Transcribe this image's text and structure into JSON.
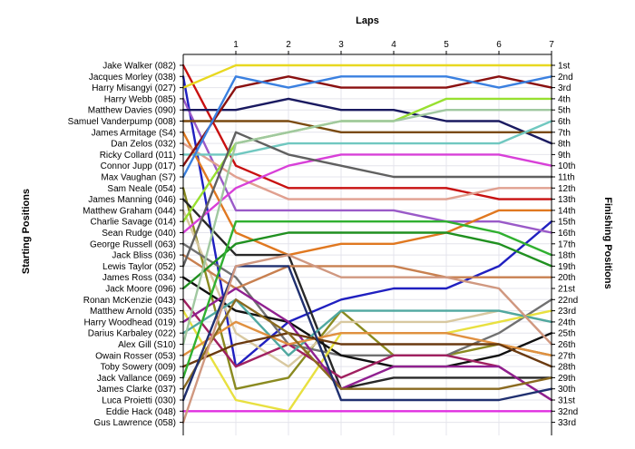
{
  "chart_data": {
    "type": "line",
    "xlabel": "Laps",
    "ylabel_left": "Starting Positions",
    "ylabel_right": "Finishing Positions",
    "x": [
      0,
      1,
      2,
      3,
      4,
      5,
      6,
      7
    ],
    "xticks": [
      "1",
      "2",
      "3",
      "4",
      "5",
      "6",
      "7"
    ],
    "yrange": [
      1,
      33
    ],
    "y_inverted": true,
    "grid": true,
    "starting_labels": [
      "Jake Walker (082)",
      "Jacques Morley (038)",
      "Harry Misangyi (027)",
      "Harry Webb (085)",
      "Matthew Davies (090)",
      "Samuel Vanderpump (008)",
      "James Armitage (S4)",
      "Dan Zelos (032)",
      "Ricky Collard (011)",
      "Connor Jupp (017)",
      "Max Vaughan (S7)",
      "Sam Neale (054)",
      "James Manning (046)",
      "Matthew Graham (044)",
      "Charlie Savage (014)",
      "Sean Rudge (040)",
      "George Russell (063)",
      "Jack Bliss (036)",
      "Lewis Taylor (052)",
      "James Ross (034)",
      "Jack Moore (096)",
      "Ronan McKenzie (043)",
      "Matthew Arnold (035)",
      "Harry Woodhead (019)",
      "Darius Karbaley (022)",
      "Alex Gill (S10)",
      "Owain Rosser (053)",
      "Toby Sowery (009)",
      "Jack Vallance (069)",
      "James Clarke (037)",
      "Luca Proietti (030)",
      "Eddie Hack (048)",
      "Gus Lawrence (058)"
    ],
    "finishing_labels": [
      "1st",
      "2nd",
      "3rd",
      "4th",
      "5th",
      "6th",
      "7th",
      "8th",
      "9th",
      "10th",
      "11th",
      "12th",
      "13th",
      "14th",
      "15th",
      "16th",
      "17th",
      "18th",
      "19th",
      "20th",
      "21st",
      "22nd",
      "23rd",
      "24th",
      "25th",
      "26th",
      "27th",
      "28th",
      "29th",
      "30th",
      "31st",
      "32nd",
      "33rd"
    ],
    "series": [
      {
        "color": "#c81010",
        "values": [
          1,
          10,
          12,
          12,
          12,
          12,
          13,
          13
        ]
      },
      {
        "color": "#2020c0",
        "values": [
          2,
          28,
          24,
          22,
          21,
          21,
          19,
          15
        ]
      },
      {
        "color": "#e8d820",
        "values": [
          3,
          1,
          1,
          1,
          1,
          1,
          1,
          1
        ]
      },
      {
        "color": "#9a5ac8",
        "values": [
          4,
          14,
          14,
          14,
          14,
          15,
          15,
          16
        ]
      },
      {
        "color": "#1a1a60",
        "values": [
          5,
          5,
          4,
          5,
          5,
          6,
          6,
          8
        ]
      },
      {
        "color": "#7a4a10",
        "values": [
          6,
          6,
          6,
          7,
          7,
          7,
          7,
          7
        ]
      },
      {
        "color": "#e07820",
        "values": [
          7,
          16,
          18,
          17,
          17,
          16,
          14,
          14
        ]
      },
      {
        "color": "#e0a090",
        "values": [
          8,
          11,
          13,
          13,
          13,
          13,
          12,
          12
        ]
      },
      {
        "color": "#70c8c0",
        "values": [
          9,
          9,
          8,
          8,
          8,
          8,
          8,
          6
        ]
      },
      {
        "color": "#8a1010",
        "values": [
          10,
          3,
          2,
          3,
          3,
          3,
          2,
          3
        ]
      },
      {
        "color": "#3a80e0",
        "values": [
          11,
          2,
          3,
          2,
          2,
          2,
          3,
          2
        ]
      },
      {
        "color": "#8a8a20",
        "values": [
          12,
          30,
          29,
          23,
          27,
          27,
          26,
          27
        ]
      },
      {
        "color": "#282828",
        "values": [
          13,
          18,
          18,
          30,
          29,
          29,
          29,
          29
        ]
      },
      {
        "color": "#d8c8a0",
        "values": [
          14,
          25,
          28,
          24,
          24,
          24,
          23,
          24
        ]
      },
      {
        "color": "#98e030",
        "values": [
          15,
          8,
          7,
          6,
          6,
          4,
          4,
          4
        ]
      },
      {
        "color": "#d840d8",
        "values": [
          16,
          12,
          10,
          9,
          9,
          9,
          9,
          10
        ]
      },
      {
        "color": "#707070",
        "values": [
          17,
          20,
          26,
          27,
          27,
          27,
          25,
          22
        ]
      },
      {
        "color": "#c88050",
        "values": [
          18,
          21,
          19,
          19,
          19,
          20,
          20,
          20
        ]
      },
      {
        "color": "#606060",
        "values": [
          19,
          7,
          9,
          10,
          11,
          11,
          11,
          11
        ]
      },
      {
        "color": "#101010",
        "values": [
          20,
          23,
          24,
          27,
          28,
          28,
          27,
          25
        ]
      },
      {
        "color": "#209020",
        "values": [
          21,
          17,
          16,
          16,
          16,
          16,
          17,
          19
        ]
      },
      {
        "color": "#a02060",
        "values": [
          22,
          28,
          26,
          29,
          27,
          27,
          28,
          31
        ]
      },
      {
        "color": "#e8e040",
        "values": [
          23,
          31,
          32,
          25,
          25,
          25,
          24,
          23
        ]
      },
      {
        "color": "#902090",
        "values": [
          24,
          21,
          24,
          30,
          28,
          28,
          28,
          31
        ]
      },
      {
        "color": "#50a8a0",
        "values": [
          25,
          22,
          27,
          23,
          23,
          23,
          23,
          24
        ]
      },
      {
        "color": "#a0c8a0",
        "values": [
          26,
          8,
          7,
          6,
          6,
          5,
          5,
          5
        ]
      },
      {
        "color": "#e09040",
        "values": [
          27,
          24,
          26,
          25,
          25,
          25,
          26,
          27
        ]
      },
      {
        "color": "#6a3a10",
        "values": [
          28,
          26,
          25,
          26,
          26,
          26,
          26,
          28
        ]
      },
      {
        "color": "#30b030",
        "values": [
          29,
          15,
          15,
          15,
          15,
          15,
          16,
          18
        ]
      },
      {
        "color": "#8a6a20",
        "values": [
          30,
          22,
          25,
          30,
          30,
          30,
          30,
          29
        ]
      },
      {
        "color": "#203070",
        "values": [
          31,
          19,
          19,
          31,
          31,
          31,
          31,
          30
        ]
      },
      {
        "color": "#e030e0",
        "values": [
          32,
          32,
          32,
          32,
          32,
          32,
          32,
          32
        ]
      },
      {
        "color": "#d09880",
        "values": [
          33,
          19,
          18,
          20,
          20,
          20,
          21,
          26
        ]
      }
    ]
  }
}
